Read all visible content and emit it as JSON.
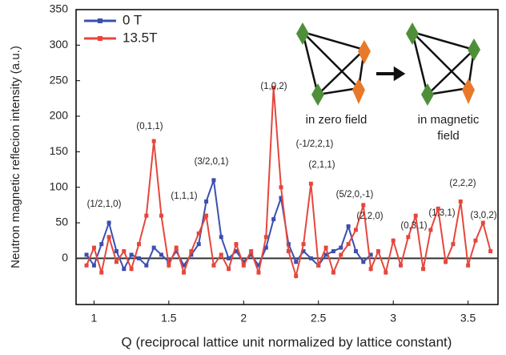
{
  "chart_data": {
    "type": "line",
    "x_label": "Q (reciprocal lattice unit normalized by lattice constant)",
    "y_label": "Neutron magnetic reflecion intensity (a.u.)",
    "x": [
      0.95,
      1.0,
      1.05,
      1.1,
      1.15,
      1.2,
      1.25,
      1.3,
      1.35,
      1.4,
      1.45,
      1.5,
      1.55,
      1.6,
      1.65,
      1.7,
      1.75,
      1.8,
      1.85,
      1.9,
      1.95,
      2.0,
      2.05,
      2.1,
      2.15,
      2.2,
      2.25,
      2.3,
      2.35,
      2.4,
      2.45,
      2.5,
      2.55,
      2.6,
      2.65,
      2.7,
      2.75,
      2.8,
      2.85,
      2.9,
      2.95,
      3.0,
      3.05,
      3.1,
      3.15,
      3.2,
      3.25,
      3.3,
      3.35,
      3.4,
      3.45,
      3.5,
      3.55,
      3.6,
      3.65
    ],
    "series": [
      {
        "name": "0 T",
        "color": "#3b4fb0",
        "values": [
          5,
          -10,
          20,
          50,
          10,
          -15,
          5,
          0,
          -10,
          15,
          5,
          -5,
          10,
          -10,
          5,
          20,
          80,
          110,
          30,
          0,
          10,
          -5,
          5,
          -10,
          15,
          55,
          85,
          20,
          -5,
          10,
          0,
          -10,
          5,
          10,
          15,
          45,
          10,
          -5,
          5,
          null,
          null,
          null,
          null,
          null,
          null,
          null,
          null,
          null,
          null,
          null,
          null,
          null,
          null,
          null,
          null
        ]
      },
      {
        "name": "13.5T",
        "color": "#e5473d",
        "values": [
          -10,
          15,
          -20,
          30,
          -5,
          10,
          -15,
          20,
          60,
          165,
          60,
          -10,
          15,
          -20,
          10,
          35,
          60,
          -10,
          5,
          -15,
          20,
          -10,
          10,
          -20,
          30,
          240,
          100,
          10,
          -25,
          20,
          105,
          -10,
          15,
          -20,
          5,
          20,
          40,
          75,
          -15,
          10,
          -20,
          25,
          -10,
          30,
          60,
          -15,
          40,
          70,
          -5,
          20,
          80,
          -10,
          25,
          50,
          10
        ]
      }
    ],
    "xlim": [
      0.88,
      3.7
    ],
    "ylim": [
      -65,
      350
    ],
    "xticks": [
      1,
      1.5,
      2,
      2.5,
      3,
      3.5
    ],
    "yticks": [
      0,
      50,
      100,
      150,
      200,
      250,
      300,
      350
    ],
    "legend": "upper left",
    "annotations": [
      "(1/2,1,0)",
      "(0,1,1)",
      "(1,1,1)",
      "(3/2,0,1)",
      "(1,0,2)",
      "(-1/2,2,1)",
      "(2,1,1)",
      "(5/2,0,-1)",
      "(2,2,0)",
      "(0,3,1)",
      "(1,3,1)",
      "(2,2,2)",
      "(3,0,2)"
    ],
    "inset_labels": [
      "in zero field",
      "in magnetic",
      "field"
    ]
  }
}
